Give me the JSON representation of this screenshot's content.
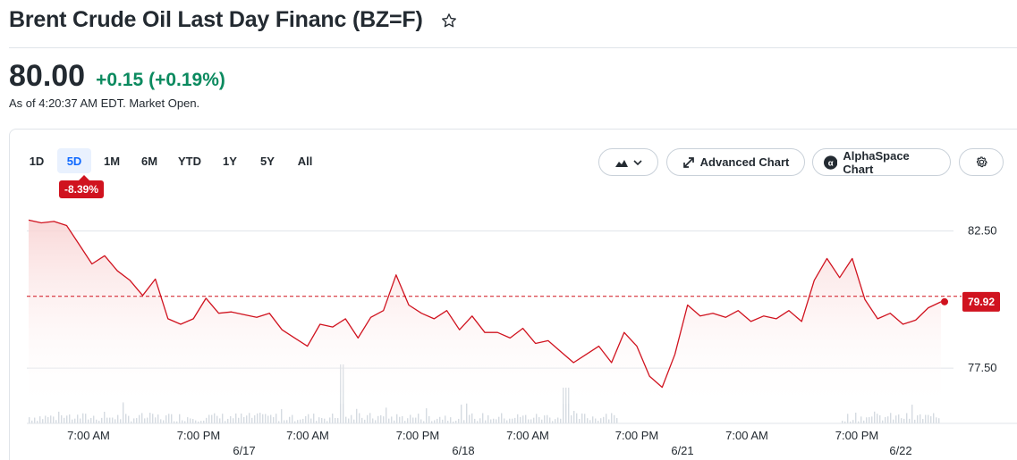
{
  "header": {
    "title": "Brent Crude Oil Last Day Financ (BZ=F)",
    "star_icon": "star-outline-icon"
  },
  "quote": {
    "price": "80.00",
    "change": "+0.15",
    "change_pct": "(+0.19%)",
    "as_of": "As of 4:20:37 AM EDT. Market Open.",
    "change_color": "#0b8a5f"
  },
  "toolbar": {
    "ranges": [
      {
        "label": "1D",
        "active": false
      },
      {
        "label": "5D",
        "active": true
      },
      {
        "label": "1M",
        "active": false
      },
      {
        "label": "6M",
        "active": false
      },
      {
        "label": "YTD",
        "active": false
      },
      {
        "label": "1Y",
        "active": false
      },
      {
        "label": "5Y",
        "active": false
      },
      {
        "label": "All",
        "active": false
      }
    ],
    "period_change": "-8.39%",
    "chart_type_icon": "mountain-chart-icon",
    "advanced_chart_label": "Advanced Chart",
    "alphaspace_label": "AlphaSpace Chart",
    "settings_icon": "gear-icon"
  },
  "colors": {
    "line": "#d0131f",
    "fill_top": "#f9d4d4",
    "accent_blue": "#0f69ff",
    "positive": "#0b8a5f"
  },
  "chart_data": {
    "type": "area",
    "title": "",
    "xlabel": "",
    "ylabel": "",
    "ylim": [
      76.2,
      83.5
    ],
    "y_ticks": [
      "82.50",
      "77.50"
    ],
    "x_tick_labels": [
      "7:00 AM",
      "7:00 PM",
      "7:00 AM",
      "7:00 PM",
      "7:00 AM",
      "7:00 PM",
      "7:00 AM",
      "7:00 PM"
    ],
    "date_labels": [
      "6/17",
      "6/18",
      "6/21",
      "6/22"
    ],
    "reference_value": 80.12,
    "last_value": "79.92",
    "series": [
      {
        "values": [
          82.9,
          82.8,
          82.85,
          82.7,
          82.0,
          81.3,
          81.6,
          81.05,
          80.7,
          80.15,
          80.75,
          79.3,
          79.1,
          79.3,
          80.05,
          79.5,
          79.55,
          79.45,
          79.35,
          79.5,
          78.9,
          78.6,
          78.3,
          79.1,
          79.0,
          79.3,
          78.6,
          79.35,
          79.6,
          80.9,
          79.8,
          79.5,
          79.3,
          79.6,
          78.9,
          79.4,
          78.8,
          78.8,
          78.6,
          78.95,
          78.4,
          78.5,
          78.1,
          77.7,
          78.0,
          78.3,
          77.7,
          78.8,
          78.3,
          77.2,
          76.8,
          78.0,
          79.8,
          79.4,
          79.5,
          79.35,
          79.6,
          79.2,
          79.4,
          79.3,
          79.6,
          79.2,
          80.7,
          81.5,
          80.8,
          81.5,
          80.0,
          79.3,
          79.5,
          79.1,
          79.25,
          79.7,
          79.92
        ]
      }
    ],
    "volume": "bars"
  }
}
